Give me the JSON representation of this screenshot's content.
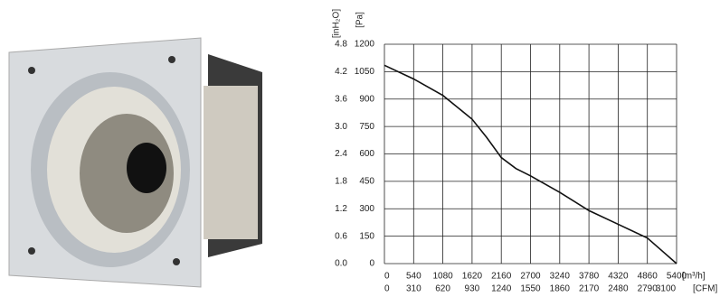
{
  "chart_data": {
    "type": "line",
    "x": [
      0,
      540,
      1080,
      1620,
      1890,
      2160,
      2430,
      2700,
      3240,
      3780,
      4320,
      4860,
      5130,
      5400
    ],
    "values": [
      1085,
      1010,
      920,
      790,
      690,
      580,
      520,
      480,
      390,
      290,
      215,
      140,
      70,
      0
    ],
    "color": "#111111",
    "xlim": [
      0,
      5400
    ],
    "xticks": [
      0,
      540,
      1080,
      1620,
      2160,
      2700,
      3240,
      3780,
      4320,
      4860,
      5400
    ],
    "x2lim": [
      0,
      3100
    ],
    "x2ticks": [
      0,
      310,
      620,
      930,
      1240,
      1550,
      1860,
      2170,
      2480,
      2790,
      3100
    ],
    "ylim": [
      0,
      1200
    ],
    "yticks": [
      0,
      150,
      300,
      450,
      600,
      750,
      900,
      1050,
      1200
    ],
    "y2lim": [
      0,
      4.8
    ],
    "y2ticks": [
      {
        "value": 0,
        "label": "0.0"
      },
      0.6,
      1.2,
      1.8,
      2.4,
      {
        "value": 3,
        "label": "3.0"
      },
      3.6,
      4.2,
      4.8
    ],
    "xlabel": "[m³/h]",
    "x2label": "[CFM]",
    "ylabel": "[Pa]",
    "y2label": "[inH₂O]",
    "grid": true
  }
}
